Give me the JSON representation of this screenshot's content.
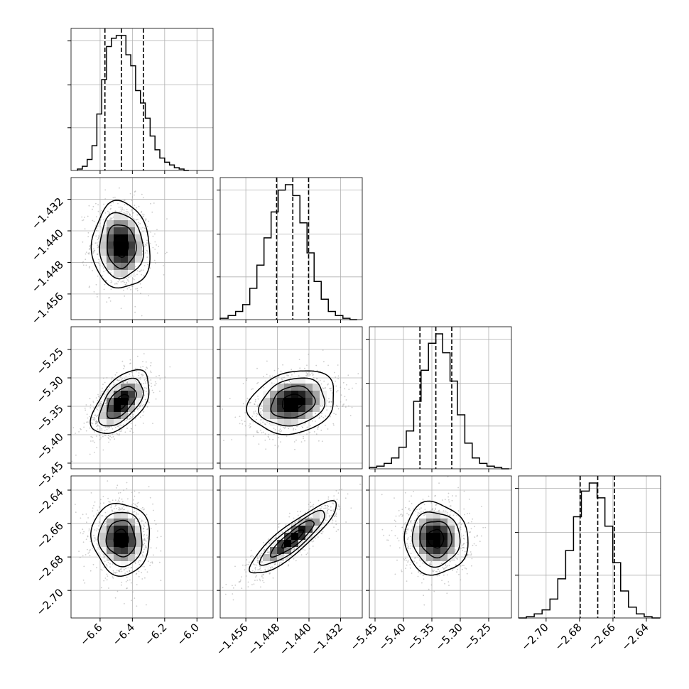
{
  "chart_data": {
    "type": "corner",
    "parameters": [
      {
        "range": [
          -6.78,
          -5.9
        ],
        "ticks": [
          "−6.6",
          "−6.4",
          "−6.2",
          "−6.0"
        ],
        "tick_values": [
          -6.6,
          -6.4,
          -6.2,
          -6.0
        ],
        "median": -6.468,
        "quantiles": [
          -6.57,
          -6.468,
          -6.332
        ],
        "hist": {
          "edges": [
            -6.74,
            -6.71,
            -6.68,
            -6.65,
            -6.62,
            -6.59,
            -6.56,
            -6.53,
            -6.5,
            -6.47,
            -6.44,
            -6.41,
            -6.38,
            -6.35,
            -6.32,
            -6.29,
            -6.26,
            -6.23,
            -6.2,
            -6.17,
            -6.14,
            -6.11,
            -6.08,
            -6.05
          ],
          "counts": [
            1,
            3,
            8,
            18,
            41,
            66,
            90,
            96,
            98,
            98,
            84,
            76,
            58,
            49,
            38,
            25,
            15,
            9,
            6,
            4,
            2,
            1,
            0
          ]
        }
      },
      {
        "range": [
          -1.4625,
          -1.4265
        ],
        "ticks": [
          "−1.456",
          "−1.448",
          "−1.440",
          "−1.432"
        ],
        "tick_values": [
          -1.456,
          -1.448,
          -1.44,
          -1.432
        ],
        "median": -1.4441,
        "quantiles": [
          -1.4482,
          -1.4441,
          -1.4401
        ],
        "hist": {
          "edges": [
            -1.4625,
            -1.4605,
            -1.4586,
            -1.4568,
            -1.455,
            -1.4532,
            -1.4514,
            -1.4496,
            -1.4478,
            -1.446,
            -1.4441,
            -1.4423,
            -1.4405,
            -1.4387,
            -1.4369,
            -1.4351,
            -1.4333,
            -1.4314,
            -1.4296,
            -1.4278
          ],
          "counts": [
            1,
            3,
            6,
            11,
            23,
            40,
            60,
            79,
            95,
            99,
            91,
            71,
            49,
            28,
            15,
            6,
            3,
            1,
            0
          ]
        }
      },
      {
        "range": [
          -5.46,
          -5.21
        ],
        "ticks": [
          "−5.45",
          "−5.40",
          "−5.35",
          "−5.30",
          "−5.25"
        ],
        "tick_values": [
          -5.45,
          -5.4,
          -5.35,
          -5.3,
          -5.25
        ],
        "median": -5.343,
        "quantiles": [
          -5.371,
          -5.343,
          -5.315
        ],
        "hist": {
          "edges": [
            -5.46,
            -5.447,
            -5.434,
            -5.421,
            -5.408,
            -5.395,
            -5.382,
            -5.369,
            -5.356,
            -5.343,
            -5.331,
            -5.318,
            -5.305,
            -5.292,
            -5.279,
            -5.266,
            -5.253,
            -5.24,
            -5.227,
            -5.214
          ],
          "counts": [
            1,
            2,
            4,
            8,
            16,
            28,
            50,
            73,
            93,
            100,
            86,
            65,
            40,
            19,
            8,
            4,
            2,
            1,
            0
          ]
        }
      },
      {
        "range": [
          -2.7165,
          -2.6315
        ],
        "ticks": [
          "−2.70",
          "−2.68",
          "−2.66",
          "−2.64"
        ],
        "tick_values": [
          -2.7,
          -2.68,
          -2.66,
          -2.64
        ],
        "median": -2.6691,
        "quantiles": [
          -2.6796,
          -2.6691,
          -2.6591
        ],
        "hist": {
          "edges": [
            -2.7165,
            -2.7118,
            -2.7071,
            -2.7024,
            -2.6977,
            -2.693,
            -2.6883,
            -2.6836,
            -2.6789,
            -2.6742,
            -2.6695,
            -2.6648,
            -2.6601,
            -2.6554,
            -2.6507,
            -2.646,
            -2.6413,
            -2.6366,
            -2.6319
          ],
          "counts": [
            0,
            1,
            3,
            6,
            14,
            29,
            50,
            75,
            94,
            100,
            89,
            68,
            41,
            20,
            8,
            3,
            1,
            0
          ]
        }
      }
    ],
    "pairs": [
      {
        "row": 1,
        "col": 0,
        "center": [
          -6.47,
          -1.4438
        ],
        "sd": [
          0.09,
          0.0055
        ],
        "corr": -0.05
      },
      {
        "row": 2,
        "col": 0,
        "center": [
          -6.47,
          -5.343
        ],
        "sd": [
          0.09,
          0.028
        ],
        "corr": 0.55
      },
      {
        "row": 2,
        "col": 1,
        "center": [
          -1.4441,
          -5.343
        ],
        "sd": [
          0.0055,
          0.028
        ],
        "corr": 0.2
      },
      {
        "row": 3,
        "col": 0,
        "center": [
          -6.47,
          -2.669
        ],
        "sd": [
          0.09,
          0.0108
        ],
        "corr": -0.05
      },
      {
        "row": 3,
        "col": 1,
        "center": [
          -1.4441,
          -2.669
        ],
        "sd": [
          0.0055,
          0.0108
        ],
        "corr": 0.88
      },
      {
        "row": 3,
        "col": 2,
        "center": [
          -5.343,
          -2.669
        ],
        "sd": [
          0.028,
          0.0108
        ],
        "corr": -0.05
      }
    ],
    "contour_levels": [
      0.5,
      1.0,
      1.5,
      2.0
    ],
    "grid": true,
    "colors": {
      "hist": "#000000",
      "scatter": "#9a9a9a",
      "density_dark": "#000000",
      "grid": "#b0b0b0"
    }
  }
}
